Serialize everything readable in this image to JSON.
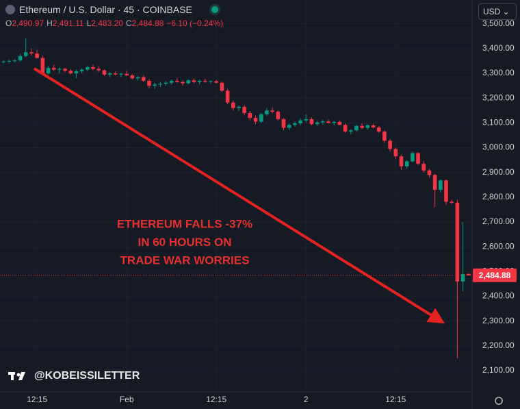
{
  "header": {
    "title": "Ethereum / U.S. Dollar · 45 · COINBASE",
    "ohlc": [
      {
        "key": "O",
        "value": "2,490.97"
      },
      {
        "key": "H",
        "value": "2,491.11"
      },
      {
        "key": "L",
        "value": "2,483.20"
      },
      {
        "key": "C",
        "value": "2,484.88"
      }
    ],
    "change": "−6.10 (−0.24%)",
    "currency": "USD"
  },
  "watermark": "@KOBEISSILETTER",
  "chart_data": {
    "type": "candlestick",
    "annotation": [
      "ETHEREUM FALLS -37%",
      "IN 60 HOURS ON",
      "TRADE WAR WORRIES"
    ],
    "up_color": "#089981",
    "down_color": "#f23645",
    "grid": true,
    "last_price_label": "2,484.88",
    "categories": [
      null,
      null,
      null,
      null,
      null,
      null,
      "12:15",
      null,
      null,
      null,
      null,
      null,
      null,
      null,
      null,
      null,
      null,
      null,
      null,
      null,
      null,
      null,
      "Feb",
      null,
      null,
      null,
      null,
      null,
      null,
      null,
      null,
      null,
      null,
      null,
      null,
      null,
      null,
      null,
      "12:15",
      null,
      null,
      null,
      null,
      null,
      null,
      null,
      null,
      null,
      null,
      null,
      null,
      null,
      null,
      null,
      "2",
      null,
      null,
      null,
      null,
      null,
      null,
      null,
      null,
      null,
      null,
      null,
      null,
      null,
      null,
      null,
      "12:15",
      null,
      null,
      null,
      null,
      null,
      null,
      null,
      null,
      null,
      null,
      null,
      null,
      null
    ],
    "series": [
      {
        "open": [
          3345,
          3348,
          3350,
          3352,
          3370,
          3385,
          3380,
          3362,
          3300,
          3322,
          3315,
          3318,
          3310,
          3300,
          3308,
          3315,
          3325,
          3318,
          3312,
          3295,
          3300,
          3296,
          3298,
          3292,
          3280,
          3285,
          3270,
          3250,
          3255,
          3258,
          3262,
          3270,
          3265,
          3260,
          3272,
          3265,
          3270,
          3266,
          3268,
          3262,
          3230,
          3182,
          3160,
          3165,
          3140,
          3120,
          3105,
          3135,
          3150,
          3145,
          3115,
          3080,
          3092,
          3098,
          3110,
          3115,
          3095,
          3102,
          3106,
          3100,
          3104,
          3092,
          3065,
          3070,
          3088,
          3080,
          3090,
          3082,
          3065,
          3028,
          2995,
          2965,
          2925,
          2945,
          2978,
          2935,
          2908,
          2890,
          2830,
          2868,
          2782,
          2778,
          2460,
          2490.97
        ],
        "high": [
          3352,
          3355,
          3358,
          3378,
          3440,
          3400,
          3395,
          3372,
          3330,
          3335,
          3325,
          3322,
          3318,
          3315,
          3320,
          3330,
          3335,
          3328,
          3316,
          3305,
          3308,
          3302,
          3310,
          3298,
          3290,
          3292,
          3278,
          3262,
          3265,
          3268,
          3275,
          3282,
          3272,
          3275,
          3280,
          3275,
          3278,
          3272,
          3274,
          3266,
          3238,
          3190,
          3170,
          3172,
          3148,
          3130,
          3140,
          3160,
          3162,
          3150,
          3120,
          3098,
          3105,
          3118,
          3135,
          3122,
          3108,
          3112,
          3114,
          3108,
          3110,
          3098,
          3075,
          3092,
          3098,
          3095,
          3096,
          3088,
          3070,
          3035,
          3000,
          2972,
          2950,
          2985,
          2982,
          2945,
          2915,
          2895,
          2872,
          2872,
          2790,
          2790,
          2700,
          2491.11
        ],
        "low": [
          3340,
          3342,
          3344,
          3348,
          3365,
          3372,
          3360,
          3296,
          3295,
          3310,
          3300,
          3305,
          3295,
          3280,
          3300,
          3308,
          3312,
          3305,
          3290,
          3285,
          3292,
          3285,
          3288,
          3275,
          3270,
          3265,
          3240,
          3238,
          3245,
          3250,
          3255,
          3262,
          3250,
          3255,
          3260,
          3255,
          3262,
          3258,
          3260,
          3225,
          3175,
          3150,
          3148,
          3130,
          3110,
          3095,
          3100,
          3128,
          3138,
          3110,
          3070,
          3070,
          3085,
          3090,
          3102,
          3090,
          3088,
          3094,
          3098,
          3090,
          3090,
          3060,
          3055,
          3065,
          3075,
          3072,
          3078,
          3060,
          3020,
          2985,
          2955,
          2910,
          2915,
          2940,
          2930,
          2900,
          2880,
          2760,
          2820,
          2770,
          2772,
          2150,
          2420,
          2483.2
        ],
        "close": [
          3348,
          3350,
          3352,
          3370,
          3385,
          3380,
          3362,
          3300,
          3322,
          3315,
          3318,
          3310,
          3300,
          3308,
          3315,
          3325,
          3318,
          3312,
          3295,
          3300,
          3296,
          3298,
          3292,
          3280,
          3285,
          3270,
          3250,
          3255,
          3258,
          3262,
          3270,
          3265,
          3260,
          3272,
          3265,
          3270,
          3266,
          3268,
          3262,
          3230,
          3182,
          3160,
          3165,
          3140,
          3120,
          3105,
          3135,
          3150,
          3145,
          3115,
          3080,
          3092,
          3098,
          3110,
          3115,
          3095,
          3102,
          3106,
          3100,
          3104,
          3092,
          3065,
          3070,
          3088,
          3080,
          3090,
          3082,
          3065,
          3028,
          2995,
          2965,
          2925,
          2945,
          2978,
          2935,
          2908,
          2890,
          2830,
          2868,
          2782,
          2778,
          2460,
          2490,
          2484.88
        ]
      }
    ],
    "ylim": [
      2020,
      3596
    ],
    "yticks": [
      {
        "value": 2100,
        "label": "2,100.00"
      },
      {
        "value": 2200,
        "label": "2,200.00"
      },
      {
        "value": 2300,
        "label": "2,300.00"
      },
      {
        "value": 2400,
        "label": "2,400.00"
      },
      {
        "value": 2500,
        "label": "2,500.00"
      },
      {
        "value": 2600,
        "label": "2,600.00"
      },
      {
        "value": 2700,
        "label": "2,700.00"
      },
      {
        "value": 2800,
        "label": "2,800.00"
      },
      {
        "value": 2900,
        "label": "2,900.00"
      },
      {
        "value": 3000,
        "label": "3,000.00"
      },
      {
        "value": 3100,
        "label": "3,100.00"
      },
      {
        "value": 3200,
        "label": "3,200.00"
      },
      {
        "value": 3300,
        "label": "3,300.00"
      },
      {
        "value": 3400,
        "label": "3,400.00"
      },
      {
        "value": 3500,
        "label": "3,500.00"
      }
    ]
  }
}
